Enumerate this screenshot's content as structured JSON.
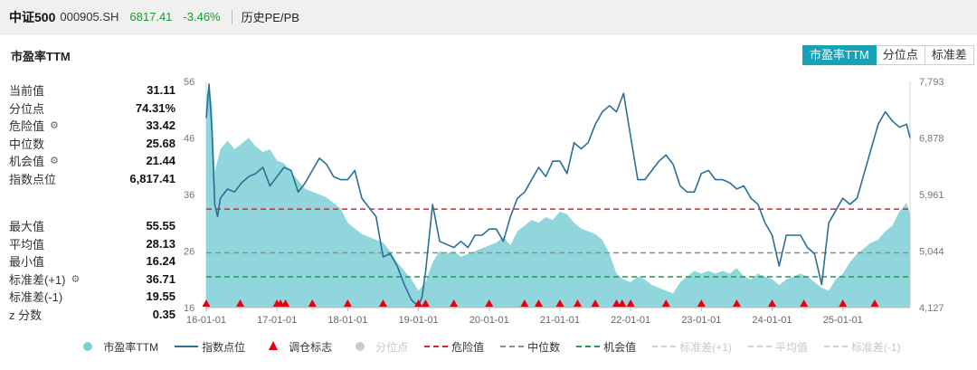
{
  "header": {
    "name": "中证500",
    "code": "000905.SH",
    "price": "6817.41",
    "change": "-3.46%",
    "history": "历史PE/PB"
  },
  "chart_title": "市盈率TTM",
  "tabs": [
    {
      "label": "市盈率TTM",
      "active": true
    },
    {
      "label": "分位点",
      "active": false
    },
    {
      "label": "标准差",
      "active": false
    }
  ],
  "stats_top": [
    {
      "label": "当前值",
      "value": "31.11",
      "gear": false
    },
    {
      "label": "分位点",
      "value": "74.31%",
      "gear": false
    },
    {
      "label": "危险值",
      "value": "33.42",
      "gear": true
    },
    {
      "label": "中位数",
      "value": "25.68",
      "gear": false
    },
    {
      "label": "机会值",
      "value": "21.44",
      "gear": true
    },
    {
      "label": "指数点位",
      "value": "6,817.41",
      "gear": false
    }
  ],
  "stats_bottom": [
    {
      "label": "最大值",
      "value": "55.55",
      "gear": false
    },
    {
      "label": "平均值",
      "value": "28.13",
      "gear": false
    },
    {
      "label": "最小值",
      "value": "16.24",
      "gear": false
    },
    {
      "label": "标准差(+1)",
      "value": "36.71",
      "gear": true
    },
    {
      "label": "标准差(-1)",
      "value": "19.55",
      "gear": false
    },
    {
      "label": "z 分数",
      "value": "0.35",
      "gear": false
    }
  ],
  "legend": [
    {
      "label": "市盈率TTM",
      "kind": "dot",
      "color": "#7ecfd6",
      "enabled": true
    },
    {
      "label": "指数点位",
      "kind": "line",
      "color": "#2a6f97",
      "enabled": true
    },
    {
      "label": "调仓标志",
      "kind": "tri",
      "color": "#e60012",
      "enabled": true
    },
    {
      "label": "分位点",
      "kind": "dot",
      "color": "#cccccc",
      "enabled": false
    },
    {
      "label": "危险值",
      "kind": "dash",
      "color": "#d9262c",
      "enabled": true
    },
    {
      "label": "中位数",
      "kind": "dash",
      "color": "#8c8c8c",
      "enabled": true
    },
    {
      "label": "机会值",
      "kind": "dash",
      "color": "#1f9a4e",
      "enabled": true
    },
    {
      "label": "标准差(+1)",
      "kind": "dash",
      "color": "#d0d0d0",
      "enabled": false
    },
    {
      "label": "平均值",
      "kind": "dash",
      "color": "#d0d0d0",
      "enabled": false
    },
    {
      "label": "标准差(-1)",
      "kind": "dash",
      "color": "#d0d0d0",
      "enabled": false
    }
  ],
  "chart_data": {
    "type": "area",
    "xlabel": "",
    "ylabel": "",
    "x_ticks": [
      "16-01-01",
      "17-01-01",
      "18-01-01",
      "19-01-01",
      "20-01-01",
      "21-01-01",
      "22-01-01",
      "23-01-01",
      "24-01-01",
      "25-01-01"
    ],
    "x_range": [
      2016.0,
      2025.95
    ],
    "y_left": {
      "ticks": [
        "56",
        "46",
        "36",
        "26",
        "16"
      ],
      "range": [
        16,
        56
      ]
    },
    "y_right": {
      "ticks": [
        "7,793",
        "6,878",
        "5,961",
        "5,044",
        "4,127"
      ],
      "range": [
        4127,
        7793
      ]
    },
    "reference_lines": [
      {
        "name": "危险值",
        "value": 33.42,
        "color": "#d9262c"
      },
      {
        "name": "中位数",
        "value": 25.68,
        "color": "#8c8c8c"
      },
      {
        "name": "机会值",
        "value": 21.44,
        "color": "#1f9a4e"
      }
    ],
    "series": [
      {
        "name": "市盈率TTM",
        "axis": "left",
        "color": "#7ecfd6",
        "x": [
          2016.0,
          2016.04,
          2016.08,
          2016.12,
          2016.2,
          2016.3,
          2016.4,
          2016.5,
          2016.6,
          2016.7,
          2016.8,
          2016.9,
          2017.0,
          2017.1,
          2017.2,
          2017.3,
          2017.4,
          2017.5,
          2017.6,
          2017.7,
          2017.8,
          2017.9,
          2018.0,
          2018.1,
          2018.2,
          2018.3,
          2018.4,
          2018.5,
          2018.6,
          2018.7,
          2018.8,
          2018.9,
          2019.0,
          2019.1,
          2019.2,
          2019.3,
          2019.4,
          2019.5,
          2019.6,
          2019.7,
          2019.8,
          2019.9,
          2020.0,
          2020.1,
          2020.2,
          2020.3,
          2020.4,
          2020.5,
          2020.6,
          2020.7,
          2020.8,
          2020.9,
          2021.0,
          2021.1,
          2021.2,
          2021.3,
          2021.4,
          2021.5,
          2021.6,
          2021.7,
          2021.8,
          2021.9,
          2022.0,
          2022.1,
          2022.2,
          2022.3,
          2022.4,
          2022.5,
          2022.6,
          2022.7,
          2022.8,
          2022.9,
          2023.0,
          2023.1,
          2023.2,
          2023.3,
          2023.4,
          2023.5,
          2023.6,
          2023.7,
          2023.8,
          2023.9,
          2024.0,
          2024.1,
          2024.2,
          2024.3,
          2024.4,
          2024.5,
          2024.6,
          2024.7,
          2024.8,
          2024.9,
          2025.0,
          2025.1,
          2025.2,
          2025.3,
          2025.4,
          2025.5,
          2025.6,
          2025.7,
          2025.8,
          2025.9,
          2025.95
        ],
        "values": [
          53.5,
          55.0,
          52.0,
          40.0,
          44.0,
          45.5,
          44.0,
          45.0,
          46.0,
          44.5,
          43.5,
          44.0,
          42.0,
          41.5,
          40.0,
          38.5,
          37.0,
          36.5,
          36.0,
          35.5,
          34.5,
          33.5,
          31.0,
          30.0,
          29.0,
          28.5,
          28.0,
          27.5,
          26.0,
          24.0,
          22.5,
          21.0,
          19.0,
          20.5,
          24.0,
          26.0,
          25.5,
          26.0,
          25.0,
          25.5,
          26.0,
          26.5,
          27.0,
          27.5,
          28.5,
          27.0,
          29.5,
          30.5,
          31.5,
          31.0,
          32.0,
          31.5,
          33.0,
          32.5,
          31.0,
          30.0,
          29.5,
          29.0,
          28.0,
          25.5,
          22.0,
          21.0,
          20.5,
          21.5,
          21.0,
          20.0,
          19.5,
          19.0,
          18.5,
          20.5,
          21.5,
          22.5,
          22.0,
          22.5,
          22.0,
          22.5,
          22.0,
          23.0,
          21.5,
          21.0,
          22.0,
          21.5,
          21.0,
          20.0,
          21.0,
          21.5,
          22.0,
          21.5,
          20.5,
          19.5,
          19.0,
          21.0,
          22.0,
          24.0,
          25.5,
          26.5,
          27.5,
          28.0,
          29.5,
          30.5,
          33.0,
          34.5,
          32.5
        ]
      },
      {
        "name": "指数点位",
        "axis": "right",
        "color": "#2a6f97",
        "x": [
          2016.0,
          2016.04,
          2016.08,
          2016.12,
          2016.16,
          2016.2,
          2016.3,
          2016.4,
          2016.5,
          2016.6,
          2016.7,
          2016.8,
          2016.9,
          2017.0,
          2017.1,
          2017.2,
          2017.3,
          2017.4,
          2017.5,
          2017.6,
          2017.7,
          2017.8,
          2017.9,
          2018.0,
          2018.1,
          2018.2,
          2018.3,
          2018.4,
          2018.5,
          2018.6,
          2018.7,
          2018.8,
          2018.9,
          2019.0,
          2019.05,
          2019.1,
          2019.2,
          2019.3,
          2019.4,
          2019.5,
          2019.6,
          2019.7,
          2019.8,
          2019.9,
          2020.0,
          2020.1,
          2020.2,
          2020.3,
          2020.4,
          2020.5,
          2020.6,
          2020.7,
          2020.8,
          2020.9,
          2021.0,
          2021.1,
          2021.2,
          2021.3,
          2021.4,
          2021.5,
          2021.6,
          2021.7,
          2021.8,
          2021.9,
          2022.0,
          2022.1,
          2022.2,
          2022.3,
          2022.4,
          2022.5,
          2022.6,
          2022.7,
          2022.8,
          2022.9,
          2023.0,
          2023.1,
          2023.2,
          2023.3,
          2023.4,
          2023.5,
          2023.6,
          2023.7,
          2023.8,
          2023.9,
          2024.0,
          2024.1,
          2024.2,
          2024.3,
          2024.4,
          2024.5,
          2024.6,
          2024.7,
          2024.8,
          2024.9,
          2025.0,
          2025.1,
          2025.2,
          2025.3,
          2025.4,
          2025.5,
          2025.6,
          2025.7,
          2025.8,
          2025.9,
          2025.95
        ],
        "values": [
          7200,
          7750,
          7000,
          5800,
          5600,
          5900,
          6050,
          6000,
          6150,
          6250,
          6300,
          6400,
          6100,
          6250,
          6400,
          6350,
          6000,
          6150,
          6350,
          6550,
          6450,
          6250,
          6200,
          6200,
          6350,
          5900,
          5750,
          5600,
          4950,
          5000,
          4800,
          4500,
          4250,
          4150,
          4300,
          4700,
          5800,
          5200,
          5150,
          5100,
          5200,
          5100,
          5300,
          5300,
          5400,
          5400,
          5200,
          5600,
          5900,
          6000,
          6200,
          6400,
          6250,
          6500,
          6500,
          6300,
          6800,
          6700,
          6800,
          7100,
          7300,
          7400,
          7300,
          7600,
          6900,
          6200,
          6200,
          6350,
          6500,
          6600,
          6450,
          6100,
          6000,
          6000,
          6300,
          6350,
          6200,
          6200,
          6150,
          6050,
          6100,
          5900,
          5800,
          5500,
          5300,
          4800,
          5300,
          5300,
          5300,
          5100,
          5000,
          4500,
          5500,
          5700,
          5900,
          5800,
          5900,
          6300,
          6700,
          7100,
          7300,
          7150,
          7050,
          7100,
          6878
        ]
      }
    ],
    "adjustment_markers": {
      "name": "调仓标志",
      "color": "#e60012",
      "x": [
        2016.0,
        2016.48,
        2017.0,
        2017.05,
        2017.12,
        2017.5,
        2018.0,
        2018.5,
        2019.0,
        2019.1,
        2019.5,
        2020.0,
        2020.5,
        2020.7,
        2021.0,
        2021.25,
        2021.5,
        2021.8,
        2021.88,
        2022.0,
        2022.5,
        2023.0,
        2023.5,
        2024.0,
        2024.45,
        2025.0,
        2025.45
      ]
    }
  }
}
